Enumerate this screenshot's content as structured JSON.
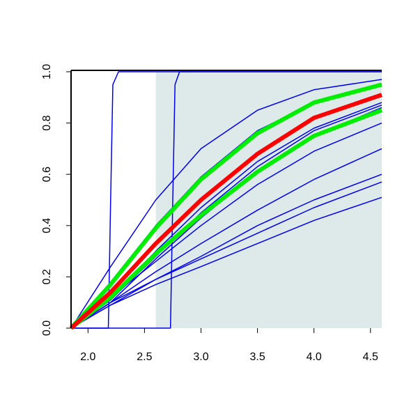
{
  "chart_data": {
    "type": "line",
    "xlim": [
      1.85,
      4.6
    ],
    "ylim": [
      0,
      1
    ],
    "xticks": [
      {
        "value": 2.0,
        "label": "2.0"
      },
      2.5,
      {
        "value": 3.0,
        "label": "3.0"
      },
      3.5,
      {
        "value": 4.0,
        "label": "4.0"
      },
      4.5
    ],
    "yticks": [
      {
        "value": 0,
        "label": "0.0"
      },
      0.2,
      0.4,
      0.6,
      0.8,
      {
        "value": 1,
        "label": "1.0"
      }
    ],
    "shade_xmin": 2.6,
    "shade_color": "#deeaea",
    "series": [
      {
        "color": "#0000ee",
        "width": 1.5,
        "x": [
          1.85,
          2.2,
          2.6,
          3.0,
          3.5,
          4.0,
          4.6
        ],
        "values": [
          0,
          0.24,
          0.5,
          0.7,
          0.85,
          0.93,
          0.97
        ]
      },
      {
        "color": "#0000ee",
        "width": 1.5,
        "x": [
          1.85,
          2.2,
          2.6,
          3.0,
          3.5,
          4.0,
          4.6
        ],
        "values": [
          0,
          0.18,
          0.4,
          0.59,
          0.77,
          0.88,
          0.95
        ]
      },
      {
        "color": "#0000ee",
        "width": 1.5,
        "x": [
          1.85,
          2.2,
          2.6,
          3.0,
          3.5,
          4.0,
          4.6
        ],
        "values": [
          0,
          0.12,
          0.3,
          0.47,
          0.65,
          0.78,
          0.88
        ]
      },
      {
        "color": "#0000ee",
        "width": 1.5,
        "x": [
          1.85,
          2.2,
          2.6,
          3.0,
          3.5,
          4.0,
          4.6
        ],
        "values": [
          0,
          0.11,
          0.28,
          0.45,
          0.63,
          0.77,
          0.87
        ]
      },
      {
        "color": "#0000ee",
        "width": 1.5,
        "x": [
          1.85,
          2.2,
          2.6,
          3.0,
          3.5,
          4.0,
          4.6
        ],
        "values": [
          0,
          0.1,
          0.27,
          0.43,
          0.61,
          0.75,
          0.86
        ]
      },
      {
        "color": "#0000ee",
        "width": 1.5,
        "x": [
          1.85,
          2.2,
          2.6,
          3.0,
          3.5,
          4.0,
          4.6
        ],
        "values": [
          0,
          0.12,
          0.26,
          0.4,
          0.56,
          0.69,
          0.8
        ]
      },
      {
        "color": "#0000ee",
        "width": 1.5,
        "x": [
          1.85,
          2.2,
          2.6,
          3.0,
          3.5,
          4.0,
          4.6
        ],
        "values": [
          0,
          0.1,
          0.22,
          0.33,
          0.46,
          0.58,
          0.7
        ]
      },
      {
        "color": "#0000ee",
        "width": 1.5,
        "x": [
          1.85,
          2.2,
          2.6,
          3.0,
          3.5,
          4.0,
          4.6
        ],
        "values": [
          0,
          0.09,
          0.19,
          0.28,
          0.4,
          0.5,
          0.6
        ]
      },
      {
        "color": "#0000ee",
        "width": 1.5,
        "x": [
          1.85,
          2.2,
          2.6,
          3.0,
          3.5,
          4.0,
          4.6
        ],
        "values": [
          0,
          0.1,
          0.19,
          0.27,
          0.37,
          0.47,
          0.57
        ]
      },
      {
        "color": "#0000ee",
        "width": 1.5,
        "x": [
          1.85,
          2.2,
          2.6,
          3.0,
          3.5,
          4.0,
          4.6
        ],
        "values": [
          0,
          0.09,
          0.17,
          0.24,
          0.33,
          0.42,
          0.51
        ]
      },
      {
        "color": "#0000ee",
        "width": 1.5,
        "x": [
          1.85,
          2.18,
          2.2,
          2.22,
          2.27,
          4.6
        ],
        "values": [
          0,
          0,
          0.5,
          0.95,
          1,
          1
        ]
      },
      {
        "color": "#0000ee",
        "width": 1.5,
        "x": [
          1.85,
          2.73,
          2.75,
          2.77,
          2.81,
          4.6
        ],
        "values": [
          0,
          0,
          0.5,
          0.95,
          1,
          1
        ]
      },
      {
        "color": "#00ee00",
        "width": 6,
        "x": [
          1.85,
          2.2,
          2.6,
          3.0,
          3.5,
          4.0,
          4.6
        ],
        "values": [
          0,
          0.17,
          0.39,
          0.58,
          0.76,
          0.88,
          0.95
        ]
      },
      {
        "color": "#00ee00",
        "width": 6,
        "x": [
          1.85,
          2.2,
          2.6,
          3.0,
          3.5,
          4.0,
          4.6
        ],
        "values": [
          0,
          0.12,
          0.29,
          0.44,
          0.61,
          0.75,
          0.85
        ]
      },
      {
        "color": "#ff0000",
        "width": 6,
        "x": [
          1.85,
          2.2,
          2.6,
          3.0,
          3.5,
          4.0,
          4.6
        ],
        "values": [
          0,
          0.14,
          0.33,
          0.5,
          0.68,
          0.82,
          0.91
        ]
      }
    ]
  }
}
